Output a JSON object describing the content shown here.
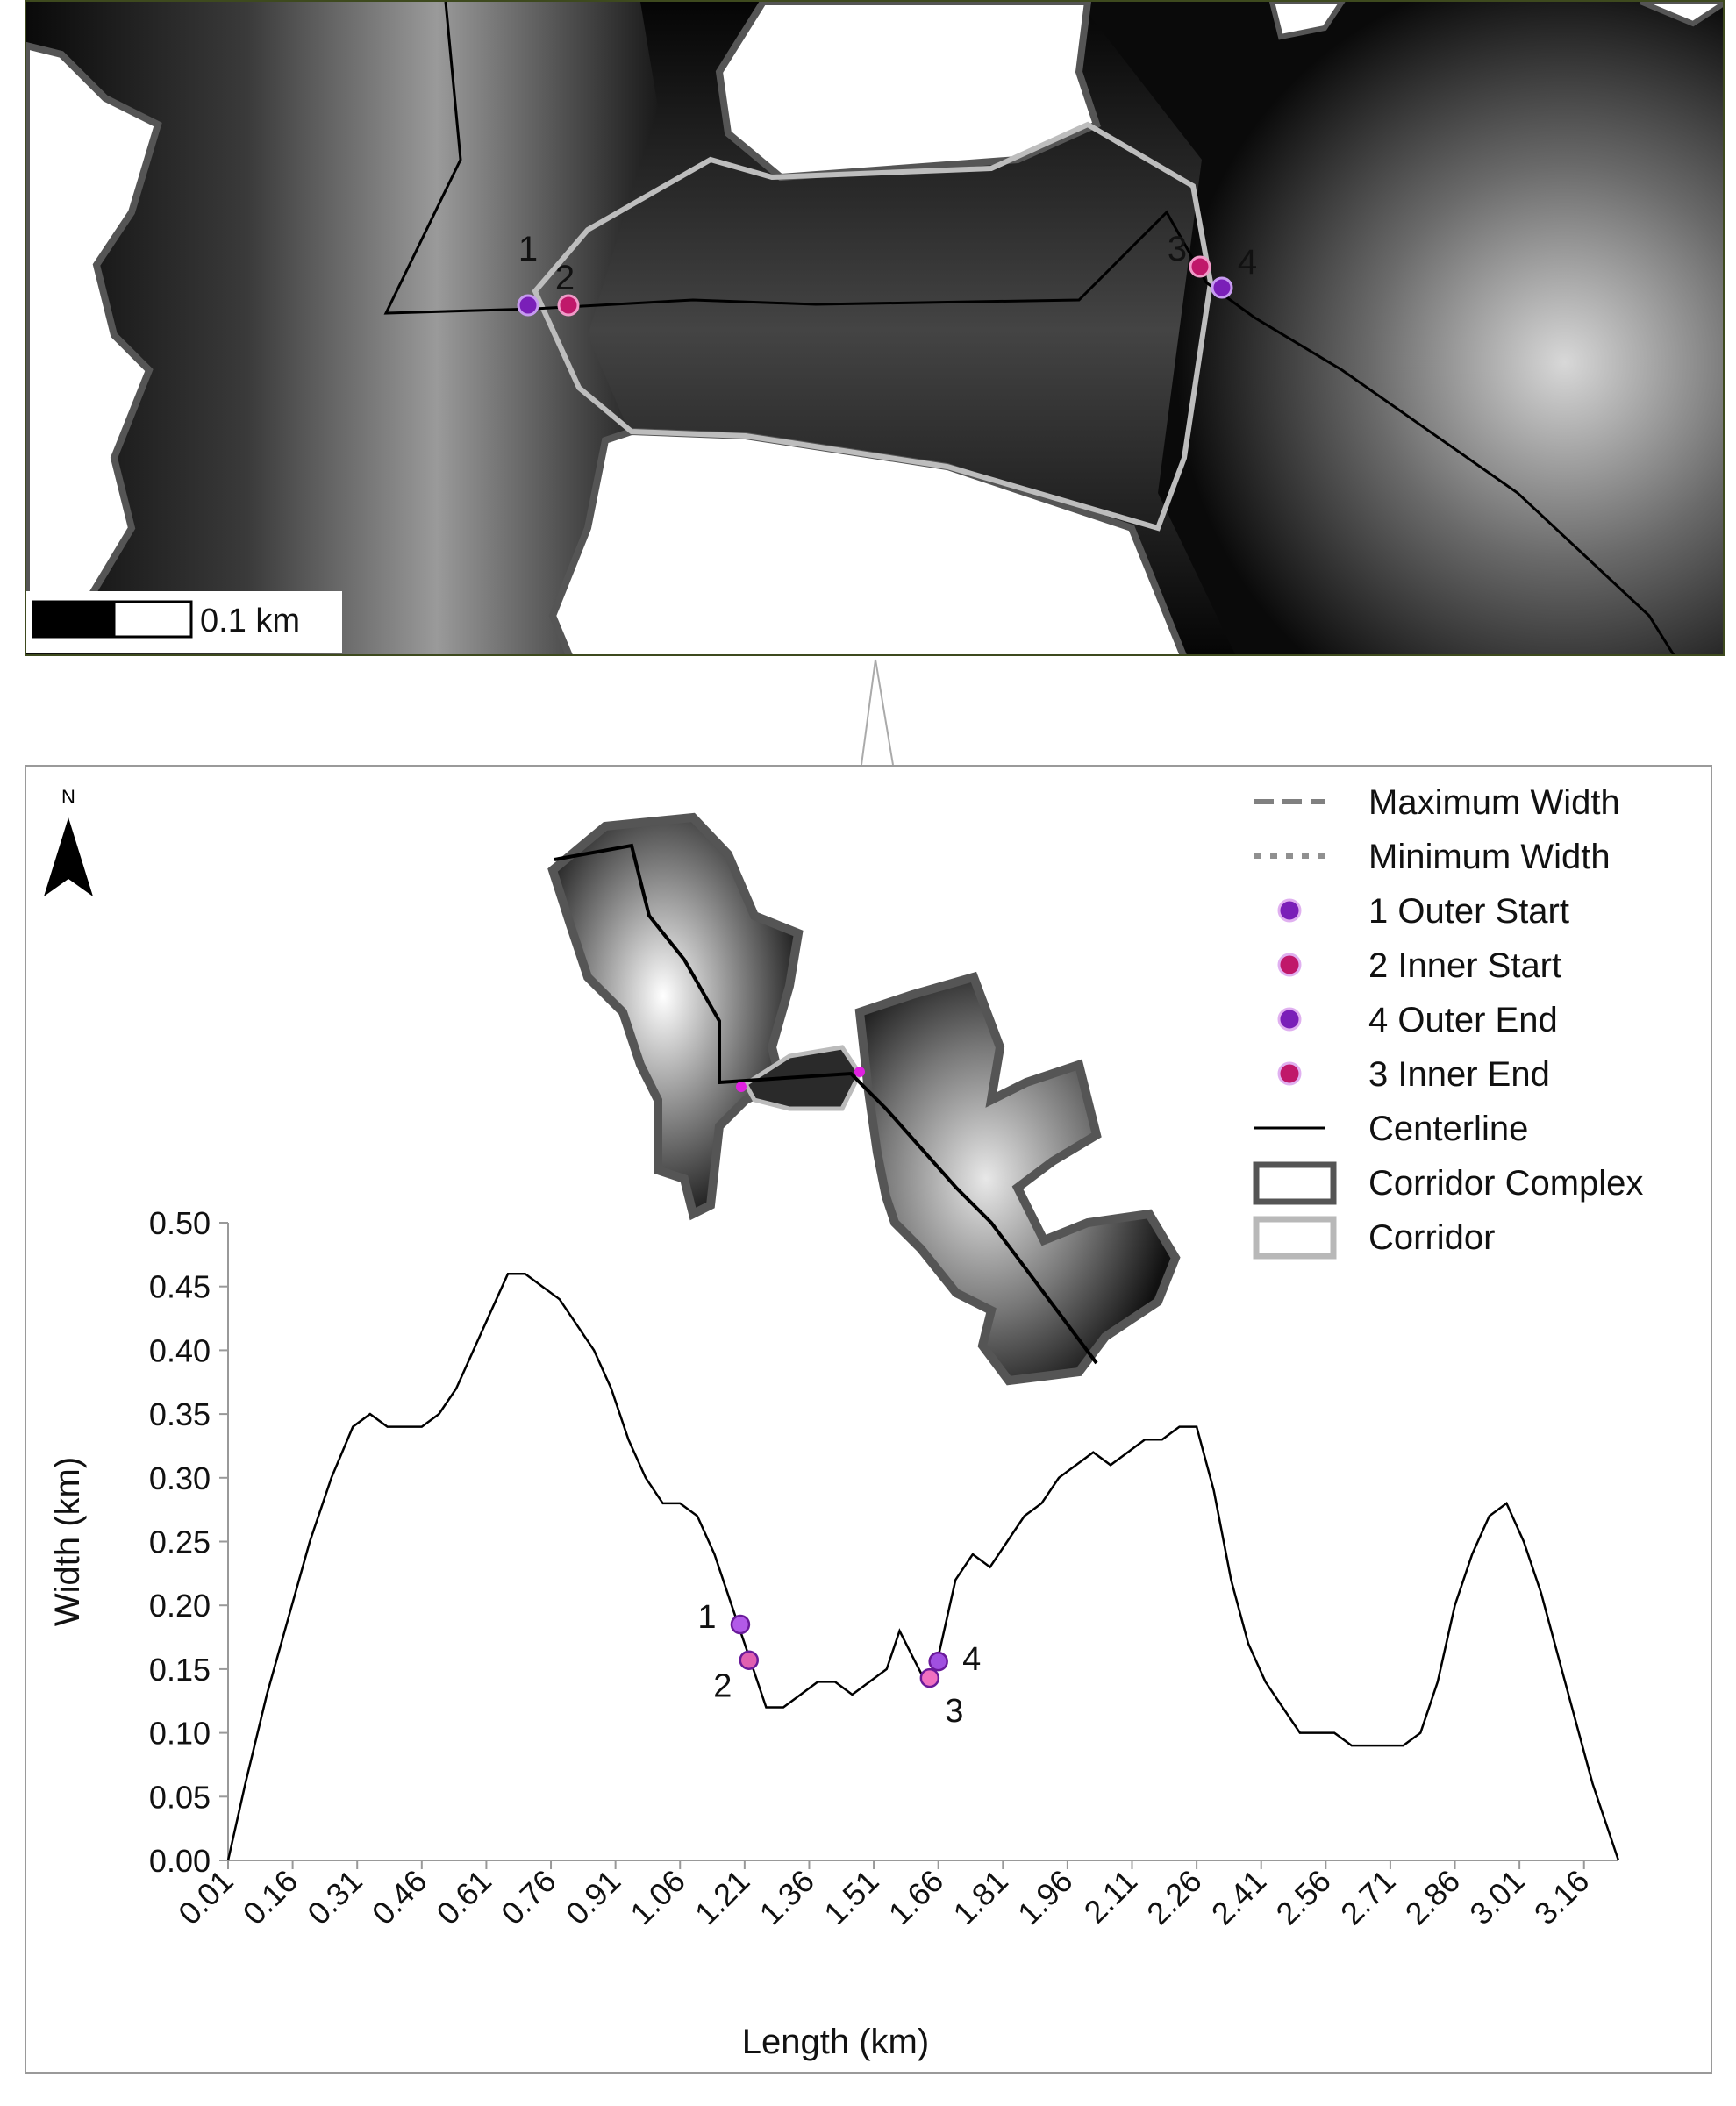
{
  "inset": {
    "scale_label": "0.1 km",
    "point_labels": [
      "1",
      "2",
      "3",
      "4"
    ]
  },
  "north_label": "N",
  "legend": {
    "items": [
      {
        "label": "Maximum Width",
        "symbol": "dashed-line",
        "color": "#808080"
      },
      {
        "label": "Minimum Width",
        "symbol": "dotted-line",
        "color": "#909090"
      },
      {
        "label": "1 Outer Start",
        "symbol": "point",
        "color": "#7a1fb8"
      },
      {
        "label": "2 Inner Start",
        "symbol": "point",
        "color": "#c0186a"
      },
      {
        "label": "4 Outer End",
        "symbol": "point",
        "color": "#7a1fb8"
      },
      {
        "label": "3 Inner End",
        "symbol": "point",
        "color": "#c0186a"
      },
      {
        "label": "Centerline",
        "symbol": "line",
        "color": "#000000"
      },
      {
        "label": "Corridor Complex",
        "symbol": "box",
        "color": "#555555"
      },
      {
        "label": "Corridor",
        "symbol": "box",
        "color": "#b8b8b8"
      }
    ]
  },
  "chart_data": {
    "type": "line",
    "xlabel": "Length (km)",
    "ylabel": "Width (km)",
    "xlim": [
      0.01,
      3.24
    ],
    "ylim": [
      0,
      0.5
    ],
    "x_ticks": [
      "0.01",
      "0.16",
      "0.31",
      "0.46",
      "0.61",
      "0.76",
      "0.91",
      "1.06",
      "1.21",
      "1.36",
      "1.51",
      "1.66",
      "1.81",
      "1.96",
      "2.11",
      "2.26",
      "2.41",
      "2.56",
      "2.71",
      "2.86",
      "3.01",
      "3.16"
    ],
    "y_ticks": [
      "0.00",
      "0.05",
      "0.10",
      "0.15",
      "0.20",
      "0.25",
      "0.30",
      "0.35",
      "0.40",
      "0.45",
      "0.50"
    ],
    "series": [
      {
        "color": "#000000",
        "x": [
          0.01,
          0.05,
          0.1,
          0.15,
          0.2,
          0.25,
          0.3,
          0.34,
          0.38,
          0.42,
          0.46,
          0.5,
          0.54,
          0.58,
          0.62,
          0.66,
          0.7,
          0.74,
          0.78,
          0.82,
          0.86,
          0.9,
          0.94,
          0.98,
          1.02,
          1.06,
          1.1,
          1.14,
          1.17,
          1.2,
          1.23,
          1.26,
          1.3,
          1.34,
          1.38,
          1.42,
          1.46,
          1.5,
          1.54,
          1.57,
          1.6,
          1.63,
          1.66,
          1.7,
          1.74,
          1.78,
          1.82,
          1.86,
          1.9,
          1.94,
          1.98,
          2.02,
          2.06,
          2.1,
          2.14,
          2.18,
          2.22,
          2.26,
          2.3,
          2.34,
          2.38,
          2.42,
          2.46,
          2.5,
          2.54,
          2.58,
          2.62,
          2.66,
          2.7,
          2.74,
          2.78,
          2.82,
          2.86,
          2.9,
          2.94,
          2.98,
          3.02,
          3.06,
          3.1,
          3.14,
          3.18,
          3.22,
          3.24
        ],
        "y": [
          0.0,
          0.06,
          0.13,
          0.19,
          0.25,
          0.3,
          0.34,
          0.35,
          0.34,
          0.34,
          0.34,
          0.35,
          0.37,
          0.4,
          0.43,
          0.46,
          0.46,
          0.45,
          0.44,
          0.42,
          0.4,
          0.37,
          0.33,
          0.3,
          0.28,
          0.28,
          0.27,
          0.24,
          0.21,
          0.18,
          0.15,
          0.12,
          0.12,
          0.13,
          0.14,
          0.14,
          0.13,
          0.14,
          0.15,
          0.18,
          0.16,
          0.14,
          0.16,
          0.22,
          0.24,
          0.23,
          0.25,
          0.27,
          0.28,
          0.3,
          0.31,
          0.32,
          0.31,
          0.32,
          0.33,
          0.33,
          0.34,
          0.34,
          0.29,
          0.22,
          0.17,
          0.14,
          0.12,
          0.1,
          0.1,
          0.1,
          0.09,
          0.09,
          0.09,
          0.09,
          0.1,
          0.14,
          0.2,
          0.24,
          0.27,
          0.28,
          0.25,
          0.21,
          0.16,
          0.11,
          0.06,
          0.02,
          0.0
        ]
      }
    ],
    "points": [
      {
        "label": "1",
        "x": 1.2,
        "y": 0.185,
        "color": "#b25ae8"
      },
      {
        "label": "2",
        "x": 1.22,
        "y": 0.157,
        "color": "#e060b0"
      },
      {
        "label": "3",
        "x": 1.64,
        "y": 0.143,
        "color": "#f070c0"
      },
      {
        "label": "4",
        "x": 1.66,
        "y": 0.156,
        "color": "#a050e0"
      }
    ]
  }
}
